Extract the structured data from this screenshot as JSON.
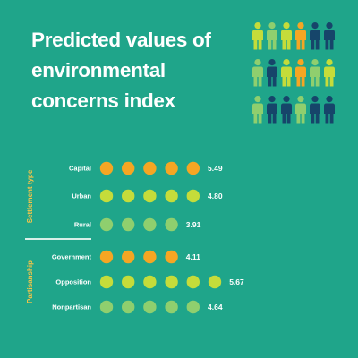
{
  "title": {
    "lines": [
      "Predicted values of",
      "environmental",
      "concerns index"
    ]
  },
  "colors": {
    "background": "#1fa58a",
    "orange": "#f5a623",
    "lime": "#c5dc3a",
    "light_green": "#8fcf6e",
    "navy": "#16456a",
    "divider": "#d8efe8"
  },
  "people_icons": {
    "icon": "person-icon",
    "rows": [
      [
        "lime",
        "light_green",
        "lime",
        "orange",
        "navy",
        "navy"
      ],
      [
        "light_green",
        "navy",
        "lime",
        "orange",
        "light_green",
        "lime"
      ],
      [
        "light_green",
        "navy",
        "navy",
        "light_green",
        "navy",
        "navy"
      ]
    ]
  },
  "chart_data": {
    "type": "dot",
    "groups": [
      {
        "name": "Settlement type",
        "items": [
          {
            "label": "Capital",
            "value": 5.49,
            "display": "5.49",
            "color": "orange"
          },
          {
            "label": "Urban",
            "value": 4.8,
            "display": "4.80",
            "color": "lime"
          },
          {
            "label": "Rural",
            "value": 3.91,
            "display": "3.91",
            "color": "light_green"
          }
        ]
      },
      {
        "name": "Partisanship",
        "items": [
          {
            "label": "Government",
            "value": 4.11,
            "display": "4.11",
            "color": "orange"
          },
          {
            "label": "Opposition",
            "value": 5.67,
            "display": "5.67",
            "color": "lime"
          },
          {
            "label": "Nonpartisan",
            "value": 4.64,
            "display": "4.64",
            "color": "light_green"
          }
        ]
      }
    ]
  }
}
